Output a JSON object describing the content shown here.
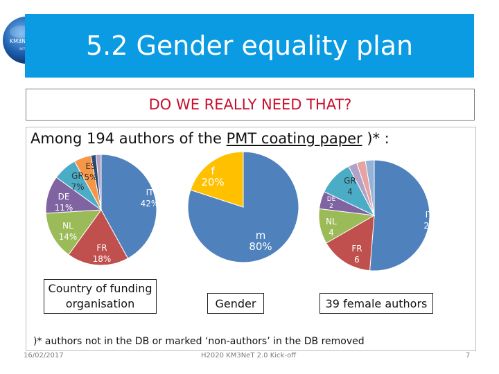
{
  "logo": {
    "line1": "KM3NeT 2.0",
    "line2": "INFRADEV"
  },
  "slide": {
    "title": "5.2 Gender equality plan",
    "question": "DO WE REALLY NEED THAT?",
    "intro_before": "Among 194 authors of the ",
    "intro_link": "PMT coating paper",
    "intro_after": " )* :",
    "footnote": ")*  authors not in the DB or marked ‘non-authors’ in the DB removed",
    "footer_date": "16/02/2017",
    "footer_center": "H2020 KM3NeT 2.0 Kick-off",
    "footer_page": "7"
  },
  "colors": {
    "title_bar": "#0b9be3",
    "question_text": "#c8102e",
    "blue": "#4f81bd",
    "red": "#c0504d",
    "green": "#9bbb59",
    "purple": "#8064a2",
    "orange": "#f79646",
    "yellow": "#ffc000"
  },
  "chart_data": [
    {
      "type": "pie",
      "title": "Country of funding organisation",
      "slices": [
        {
          "name": "IT",
          "label_value": "42%",
          "value": 42,
          "color": "#4f81bd"
        },
        {
          "name": "FR",
          "label_value": "18%",
          "value": 18,
          "color": "#c0504d"
        },
        {
          "name": "NL",
          "label_value": "14%",
          "value": 14,
          "color": "#9bbb59"
        },
        {
          "name": "DE",
          "label_value": "11%",
          "value": 11,
          "color": "#8064a2"
        },
        {
          "name": "GR",
          "label_value": "7%",
          "value": 7,
          "color": "#4bacc6"
        },
        {
          "name": "ES",
          "label_value": "5%",
          "value": 5,
          "color": "#f79646"
        },
        {
          "name": "",
          "label_value": "",
          "value": 1.5,
          "color": "#2c4d75"
        },
        {
          "name": "",
          "label_value": "",
          "value": 1.5,
          "color": "#b3a2c7"
        }
      ]
    },
    {
      "type": "pie",
      "title": "Gender",
      "slices": [
        {
          "name": "m",
          "label_value": "80%",
          "value": 80,
          "color": "#4f81bd"
        },
        {
          "name": "f",
          "label_value": "20%",
          "value": 20,
          "color": "#ffc000"
        }
      ]
    },
    {
      "type": "pie",
      "title": "39 female authors",
      "slices": [
        {
          "name": "IT",
          "label_value": "20",
          "value": 20,
          "color": "#4f81bd"
        },
        {
          "name": "FR",
          "label_value": "6",
          "value": 6,
          "color": "#c0504d"
        },
        {
          "name": "NL",
          "label_value": "4",
          "value": 4,
          "color": "#9bbb59"
        },
        {
          "name": "DE",
          "label_value": "2",
          "value": 2,
          "color": "#8064a2"
        },
        {
          "name": "GR",
          "label_value": "4",
          "value": 4,
          "color": "#4bacc6"
        },
        {
          "name": "",
          "label_value": "",
          "value": 1,
          "color": "#b3a2c7"
        },
        {
          "name": "",
          "label_value": "",
          "value": 1,
          "color": "#e6a3a1"
        },
        {
          "name": "",
          "label_value": "",
          "value": 1,
          "color": "#95b3d7"
        }
      ]
    }
  ]
}
